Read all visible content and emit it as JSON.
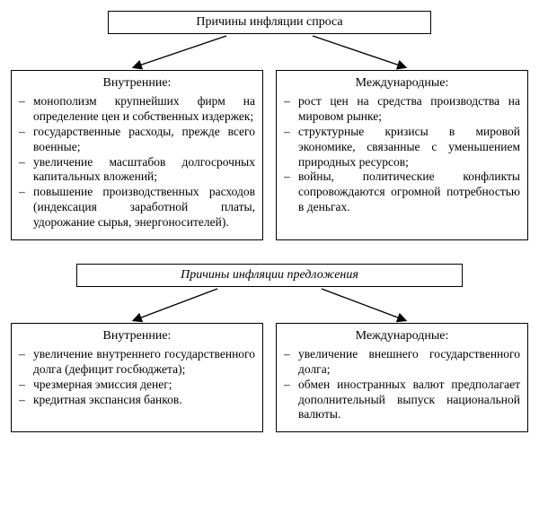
{
  "colors": {
    "background": "#ffffff",
    "border": "#000000",
    "text": "#000000",
    "arrow": "#000000"
  },
  "typography": {
    "family": "Times New Roman",
    "title_fontsize": 14,
    "body_fontsize": 13.5
  },
  "section1": {
    "title": "Причины инфляции спроса",
    "title_box_width": 360,
    "left": {
      "heading": "Внутренние:",
      "items": [
        "монополизм крупнейших фирм на определение цен и собствен­ных издержек;",
        "государственные расходы, преж­де всего военные;",
        "увеличение масштабов долго­срочных капитальных вложений;",
        "повышение производственных расходов (индексация заработной платы, удорожание сырья, энер­гоносителей)."
      ]
    },
    "right": {
      "heading": "Международные:",
      "items": [
        "рост цен на средства производст­ва на мировом рынке;",
        "структурные кризисы в мировой экономике, связанные с умень­шением природных ресурсов;",
        "войны, политические конфликты сопровождаются огромной по­требностью в деньгах."
      ]
    }
  },
  "section2": {
    "title": "Причины инфляции предложения",
    "title_box_width": 430,
    "left": {
      "heading": "Внутренние:",
      "items": [
        "увеличение внутреннего государст­венного долга (дефицит госбюд­жета);",
        "чрезмерная эмиссия денег;",
        "кредитная экспансия банков."
      ]
    },
    "right": {
      "heading": "Международные:",
      "items": [
        "увеличение внешнего государст­венного долга;",
        "обмен иностранных валют пред­полагает дополнительный выпуск на­циональной валюты."
      ]
    }
  },
  "arrows": {
    "color": "#000000",
    "stroke_width": 1.4,
    "head_size": 8,
    "layout": "two diverging arrows from title box down to each column"
  }
}
